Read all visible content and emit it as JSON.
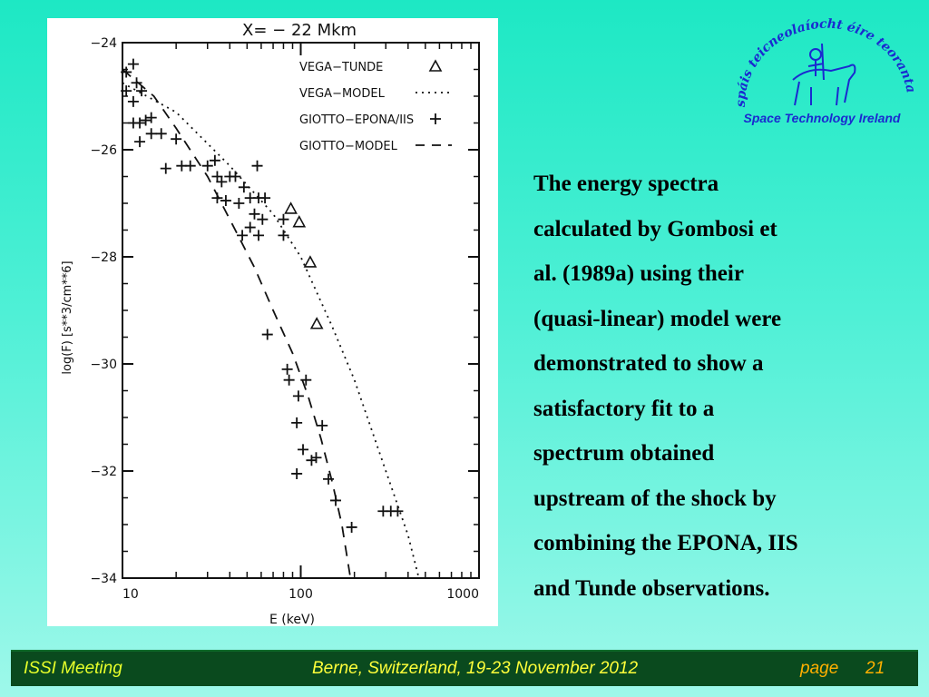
{
  "logo": {
    "arc_text": "spáis teicneolaíocht éire teoranta",
    "caption": "Space Technology Ireland"
  },
  "body_text": [
    "The energy spectra",
    "calculated by Gombosi et",
    "al. (1989a) using their",
    "(quasi-linear) model were",
    "demonstrated to show a",
    "satisfactory fit to a",
    "spectrum obtained",
    "upstream of the shock by",
    "combining the EPONA, IIS",
    "and Tunde observations."
  ],
  "footer": {
    "left": "ISSI Meeting",
    "center": "Berne,  Switzerland,  19-23 November  2012",
    "page_label": "page",
    "page_number": "21"
  },
  "chart_data": {
    "type": "scatter",
    "title": "X=  − 22 Mkm",
    "xlabel": "E (keV)",
    "ylabel": "log(F) [s**3/cm**6]",
    "xscale": "log",
    "xlim": [
      10,
      1000
    ],
    "ylim": [
      -34,
      -24
    ],
    "xticks": [
      10,
      100,
      1000
    ],
    "xtick_labels": [
      "10",
      "100",
      "1000"
    ],
    "yticks": [
      -24,
      -26,
      -28,
      -30,
      -32,
      -34
    ],
    "ytick_labels": [
      "−24",
      "−26",
      "−28",
      "−30",
      "−32",
      "−34"
    ],
    "grid": false,
    "legend_position": "top-right",
    "legend": [
      {
        "label": "VEGA−TUNDE",
        "marker": "triangle"
      },
      {
        "label": "VEGA−MODEL",
        "marker": "dotted-line"
      },
      {
        "label": "GIOTTO−EPONA/IIS",
        "marker": "plus"
      },
      {
        "label": "GIOTTO−MODEL",
        "marker": "dashed-line"
      }
    ],
    "series": [
      {
        "name": "VEGA−TUNDE",
        "kind": "scatter",
        "marker": "triangle",
        "points": [
          [
            88,
            -27.1
          ],
          [
            98,
            -27.35
          ],
          [
            113,
            -28.1
          ],
          [
            123,
            -29.25
          ]
        ]
      },
      {
        "name": "VEGA−MODEL",
        "kind": "line",
        "style": "dotted",
        "points": [
          [
            10,
            -24.75
          ],
          [
            20,
            -25.3
          ],
          [
            40,
            -26.3
          ],
          [
            70,
            -27.2
          ],
          [
            100,
            -28.0
          ],
          [
            150,
            -29.3
          ],
          [
            200,
            -30.3
          ],
          [
            300,
            -32.0
          ],
          [
            400,
            -33.2
          ],
          [
            460,
            -34
          ]
        ]
      },
      {
        "name": "GIOTTO−EPONA/IIS",
        "kind": "scatter",
        "marker": "plus",
        "points": [
          [
            10.5,
            -24.55
          ],
          [
            10.5,
            -24.9
          ],
          [
            11.5,
            -24.4
          ],
          [
            12,
            -24.75
          ],
          [
            11.5,
            -25.1
          ],
          [
            12.8,
            -24.9
          ],
          [
            11.5,
            -25.5
          ],
          [
            12.5,
            -25.5
          ],
          [
            13.5,
            -25.45
          ],
          [
            14.5,
            -25.4
          ],
          [
            12.5,
            -25.85
          ],
          [
            14.5,
            -25.7
          ],
          [
            16.5,
            -25.7
          ],
          [
            20,
            -25.8
          ],
          [
            17.5,
            -26.35
          ],
          [
            21.5,
            -26.3
          ],
          [
            24,
            -26.3
          ],
          [
            30,
            -26.3
          ],
          [
            33,
            -26.2
          ],
          [
            34,
            -26.5
          ],
          [
            36,
            -26.6
          ],
          [
            40,
            -26.5
          ],
          [
            43,
            -26.5
          ],
          [
            48,
            -26.7
          ],
          [
            57,
            -26.3
          ],
          [
            34,
            -26.9
          ],
          [
            38,
            -26.95
          ],
          [
            45,
            -27.0
          ],
          [
            52,
            -26.9
          ],
          [
            58,
            -26.9
          ],
          [
            63,
            -26.9
          ],
          [
            55,
            -27.2
          ],
          [
            61,
            -27.3
          ],
          [
            80,
            -27.3
          ],
          [
            47,
            -27.6
          ],
          [
            52,
            -27.45
          ],
          [
            58,
            -27.6
          ],
          [
            80,
            -27.6
          ],
          [
            65,
            -29.45
          ],
          [
            84,
            -30.1
          ],
          [
            86,
            -30.3
          ],
          [
            97,
            -30.6
          ],
          [
            107,
            -30.3
          ],
          [
            95,
            -31.1
          ],
          [
            103,
            -31.6
          ],
          [
            115,
            -31.8
          ],
          [
            122,
            -31.75
          ],
          [
            132,
            -31.15
          ],
          [
            95,
            -32.05
          ],
          [
            143,
            -32.15
          ],
          [
            157,
            -32.55
          ],
          [
            193,
            -33.05
          ],
          [
            290,
            -32.75
          ],
          [
            320,
            -32.75
          ],
          [
            350,
            -32.75
          ]
        ]
      },
      {
        "name": "GIOTTO−MODEL",
        "kind": "line",
        "style": "dashed",
        "points": [
          [
            10,
            -24.5
          ],
          [
            15,
            -25.0
          ],
          [
            20,
            -25.6
          ],
          [
            30,
            -26.5
          ],
          [
            40,
            -27.3
          ],
          [
            55,
            -28.2
          ],
          [
            70,
            -29.0
          ],
          [
            90,
            -29.8
          ],
          [
            110,
            -30.6
          ],
          [
            130,
            -31.4
          ],
          [
            150,
            -32.2
          ],
          [
            170,
            -33.0
          ],
          [
            190,
            -34
          ]
        ]
      }
    ]
  }
}
